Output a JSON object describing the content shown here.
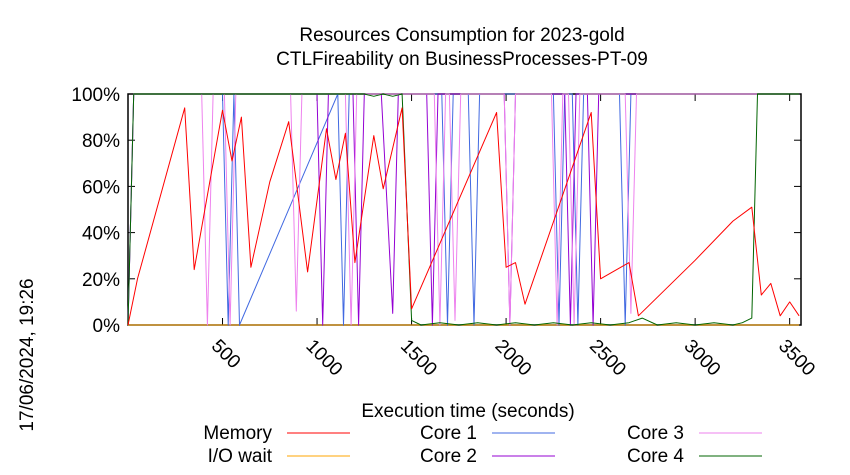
{
  "chart_data": {
    "type": "line",
    "title": "Resources Consumption for 2023-gold",
    "subtitle": "CTLFireability on BusinessProcesses-PT-09",
    "xlabel": "Execution time (seconds)",
    "ylabel": "",
    "timestamp": "17/06/2024, 19:26",
    "xlim": [
      0,
      3560
    ],
    "ylim": [
      0,
      100
    ],
    "x_ticks": [
      500,
      1000,
      1500,
      2000,
      2500,
      3000,
      3500
    ],
    "y_ticks": [
      0,
      20,
      40,
      60,
      80,
      100
    ],
    "y_tick_labels": [
      "0%",
      "20%",
      "40%",
      "60%",
      "80%",
      "100%"
    ],
    "grid": false,
    "legend_position": "bottom",
    "series": [
      {
        "name": "Memory",
        "color": "#ff0000",
        "x": [
          0,
          50,
          300,
          350,
          500,
          550,
          600,
          650,
          750,
          850,
          950,
          1050,
          1100,
          1150,
          1200,
          1300,
          1350,
          1450,
          1500,
          1950,
          2000,
          2050,
          2100,
          2450,
          2500,
          2650,
          2700,
          3000,
          3200,
          3300,
          3350,
          3400,
          3450,
          3500,
          3550
        ],
        "values": [
          0,
          20,
          94,
          24,
          93,
          71,
          90,
          25,
          62,
          88,
          23,
          85,
          63,
          83,
          27,
          82,
          59,
          94,
          7,
          92,
          25,
          27,
          9,
          92,
          20,
          27,
          4,
          28,
          45,
          51,
          13,
          18,
          4,
          10,
          4
        ]
      },
      {
        "name": "I/O wait",
        "color": "#ffa500",
        "x": [
          0,
          3550
        ],
        "values": [
          0,
          0
        ]
      },
      {
        "name": "Core 1",
        "color": "#4169e1",
        "x": [
          0,
          30,
          500,
          530,
          560,
          590,
          1110,
          1140,
          1170,
          1430,
          1470,
          1500,
          1660,
          1690,
          1720,
          1800,
          1830,
          1860,
          2250,
          2280,
          2310,
          2350,
          2380,
          2410,
          2600,
          2630,
          2660,
          3550
        ],
        "values": [
          0,
          100,
          100,
          0,
          100,
          0,
          100,
          0,
          100,
          100,
          100,
          100,
          100,
          0,
          100,
          100,
          0,
          100,
          100,
          0,
          100,
          100,
          0,
          100,
          100,
          0,
          100,
          100
        ]
      },
      {
        "name": "Core 2",
        "color": "#9400d3",
        "x": [
          0,
          30,
          1000,
          1030,
          1060,
          1190,
          1220,
          1250,
          1340,
          1400,
          1430,
          1500,
          1580,
          1610,
          1640,
          1990,
          2020,
          2050,
          2310,
          2340,
          2370,
          2430,
          2460,
          2490,
          3550
        ],
        "values": [
          0,
          100,
          100,
          0,
          100,
          100,
          0,
          100,
          100,
          5,
          100,
          100,
          100,
          0,
          100,
          100,
          0,
          100,
          100,
          0,
          100,
          100,
          0,
          100,
          100
        ]
      },
      {
        "name": "Core 3",
        "color": "#ee82ee",
        "x": [
          0,
          30,
          390,
          420,
          450,
          510,
          540,
          570,
          860,
          890,
          920,
          1150,
          1180,
          1210,
          1500,
          1530,
          1620,
          1650,
          1680,
          1700,
          1730,
          1760,
          1990,
          2020,
          2050,
          2240,
          2270,
          2300,
          2330,
          2360,
          2390,
          2630,
          2660,
          2690,
          3550
        ],
        "values": [
          0,
          100,
          100,
          0,
          100,
          100,
          0,
          100,
          100,
          6,
          100,
          100,
          0,
          100,
          100,
          100,
          100,
          0,
          100,
          100,
          2,
          100,
          100,
          0,
          100,
          100,
          0,
          100,
          100,
          0,
          100,
          100,
          5,
          100,
          100
        ]
      },
      {
        "name": "Core 4",
        "color": "#006400",
        "x": [
          0,
          30,
          1250,
          1300,
          1350,
          1400,
          1450,
          1500,
          1550,
          1650,
          1750,
          1850,
          1950,
          2050,
          2150,
          2250,
          2350,
          2450,
          2550,
          2650,
          2720,
          2800,
          2900,
          3000,
          3100,
          3200,
          3250,
          3300,
          3330,
          3550
        ],
        "values": [
          0,
          100,
          100,
          99,
          100,
          99,
          100,
          2,
          0,
          1,
          0,
          1,
          0,
          1,
          0,
          1,
          0,
          1,
          0,
          1,
          3,
          0,
          1,
          0,
          1,
          0,
          1,
          3,
          100,
          100
        ]
      }
    ]
  }
}
